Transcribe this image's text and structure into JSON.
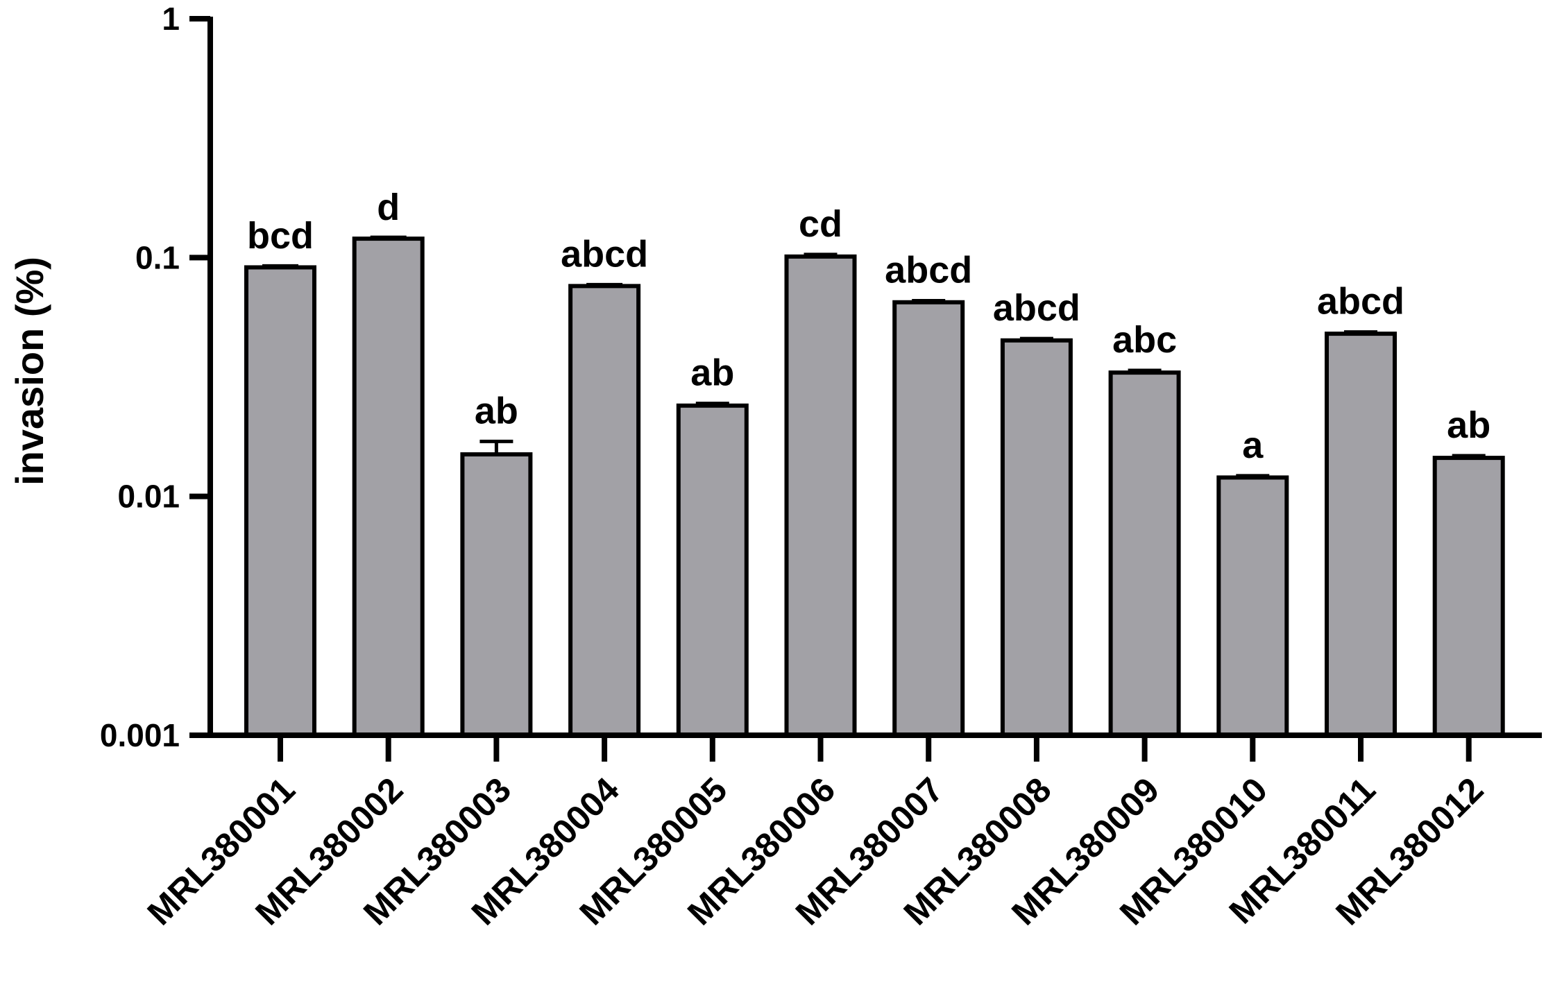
{
  "chart_data": {
    "type": "bar",
    "title": "",
    "xlabel": "",
    "ylabel": "invasion (%)",
    "yscale": "log",
    "ylim": [
      0.001,
      1
    ],
    "yticks": [
      0.001,
      0.01,
      0.1,
      1
    ],
    "ytick_labels": [
      "0.001",
      "0.01",
      "0.1",
      "1"
    ],
    "categories": [
      "MRL380001",
      "MRL380002",
      "MRL380003",
      "MRL380004",
      "MRL380005",
      "MRL380006",
      "MRL380007",
      "MRL380008",
      "MRL380009",
      "MRL380010",
      "MRL380011",
      "MRL380012"
    ],
    "values": [
      0.091,
      0.12,
      0.015,
      0.076,
      0.024,
      0.101,
      0.065,
      0.045,
      0.033,
      0.012,
      0.048,
      0.0145
    ],
    "error_upper": [
      0.092,
      0.121,
      0.017,
      0.077,
      0.0245,
      0.103,
      0.066,
      0.0458,
      0.0337,
      0.0122,
      0.0488,
      0.0148
    ],
    "significance_labels": [
      "bcd",
      "d",
      "ab",
      "abcd",
      "ab",
      "cd",
      "abcd",
      "abcd",
      "abc",
      "a",
      "abcd",
      "ab"
    ],
    "bar_color": "#a2a1a6",
    "edge_color": "#000000",
    "grid": false,
    "legend": "none"
  }
}
